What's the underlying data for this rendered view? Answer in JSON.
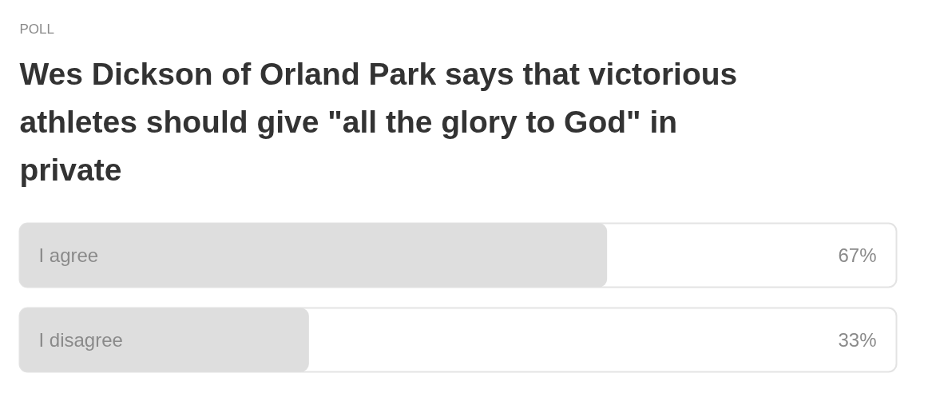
{
  "chart_data": {
    "type": "bar",
    "orientation": "horizontal",
    "subtitle": "POLL",
    "title": "Wes Dickson of Orland Park says that victorious athletes should give \"all the glory to God\" in private",
    "categories": [
      "I agree",
      "I disagree"
    ],
    "values": [
      67,
      33
    ],
    "value_labels": [
      "67%",
      "33%"
    ],
    "color": "#dedede",
    "xlim": [
      0,
      100
    ],
    "tick_labels": false,
    "grid": false
  }
}
